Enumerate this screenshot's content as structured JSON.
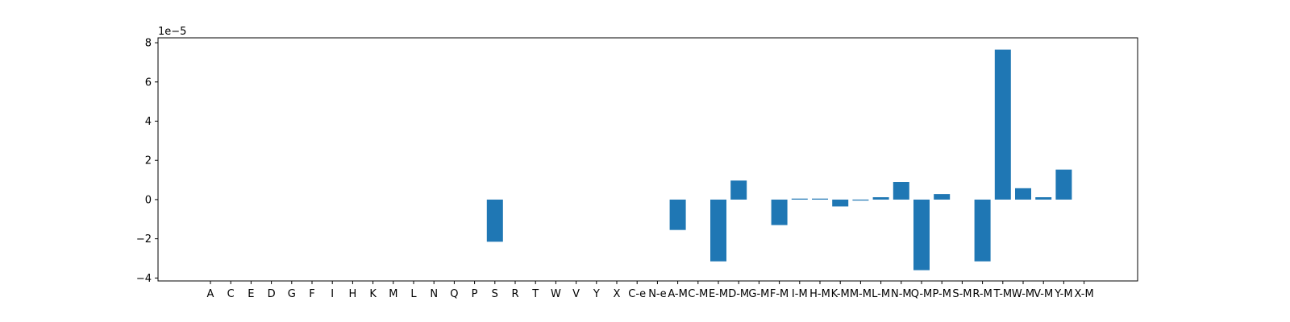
{
  "chart_data": {
    "type": "bar",
    "scale_exponent_label": "1e−5",
    "scale_factor": 1e-05,
    "categories": [
      "A",
      "C",
      "E",
      "D",
      "G",
      "F",
      "I",
      "H",
      "K",
      "M",
      "L",
      "N",
      "Q",
      "P",
      "S",
      "R",
      "T",
      "W",
      "V",
      "Y",
      "X",
      "C-e",
      "N-e",
      "A-M",
      "C-M",
      "E-M",
      "D-M",
      "G-M",
      "F-M",
      "I-M",
      "H-M",
      "K-M",
      "M-M",
      "L-M",
      "N-M",
      "Q-M",
      "P-M",
      "S-M",
      "R-M",
      "T-M",
      "W-M",
      "V-M",
      "Y-M",
      "X-M"
    ],
    "values": [
      0,
      0,
      0,
      0,
      0,
      0,
      0,
      0,
      0,
      0,
      0,
      0,
      0,
      0,
      -2.15,
      0,
      0,
      0,
      0,
      0,
      0,
      0,
      0,
      -1.55,
      0,
      -3.15,
      0.97,
      0,
      -1.3,
      0.05,
      0.05,
      -0.35,
      -0.05,
      0.12,
      0.9,
      -3.6,
      0.28,
      0,
      -3.15,
      7.65,
      0.58,
      0.12,
      1.53,
      0
    ],
    "yticks": [
      -4,
      -2,
      0,
      2,
      4,
      6,
      8
    ],
    "ylim": [
      -4.15,
      8.25
    ],
    "bar_color": "#1f77b4",
    "grid": false,
    "title": "",
    "xlabel": "",
    "ylabel": ""
  }
}
